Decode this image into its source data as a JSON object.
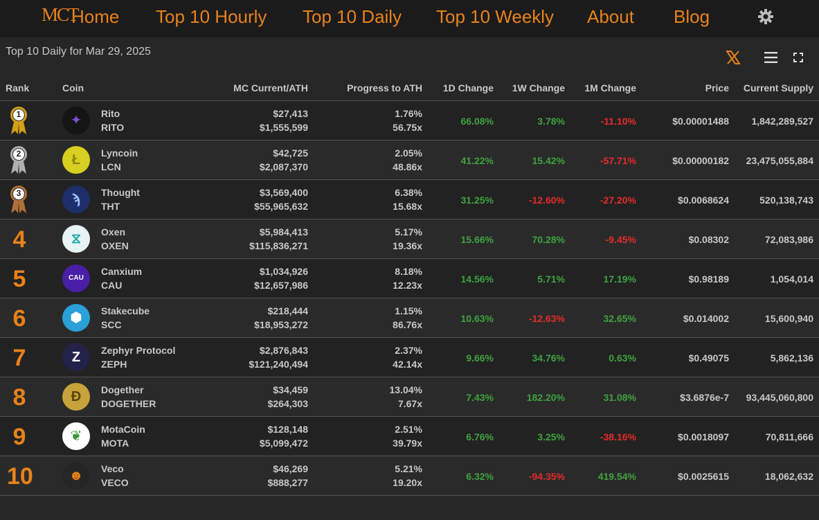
{
  "nav": {
    "logo": "MCT",
    "items": [
      "Home",
      "Top 10 Hourly",
      "Top 10 Daily",
      "Top 10 Weekly",
      "About",
      "Blog"
    ],
    "settings_icon": "gear-icon"
  },
  "subtitle": "Top 10 Daily for Mar 29, 2025",
  "toolbar": {
    "x_icon": "x-logo-icon",
    "menu_icon": "hamburger-menu-icon",
    "fullscreen_icon": "fullscreen-icon"
  },
  "colors": {
    "accent": "#e8821a",
    "positive": "#3fa33f",
    "negative": "#e52b2b",
    "gold": "#d4a017",
    "silver": "#b0b0b0",
    "bronze": "#b0703a"
  },
  "table": {
    "headers": [
      "Rank",
      "Coin",
      "MC Current/ATH",
      "Progress to ATH",
      "1D Change",
      "1W Change",
      "1M Change",
      "Price",
      "Current Supply"
    ],
    "rows": [
      {
        "rank": "1",
        "medal": "gold",
        "name": "Rito",
        "symbol": "RITO",
        "mc": "$27,413",
        "ath": "$1,555,599",
        "progress": "1.76%",
        "mult": "56.75x",
        "d1": "66.08%",
        "w1": "3.78%",
        "m1": "-11.10%",
        "price": "$0.00001488",
        "supply": "1,842,289,527"
      },
      {
        "rank": "2",
        "medal": "silver",
        "name": "Lyncoin",
        "symbol": "LCN",
        "mc": "$42,725",
        "ath": "$2,087,370",
        "progress": "2.05%",
        "mult": "48.86x",
        "d1": "41.22%",
        "w1": "15.42%",
        "m1": "-57.71%",
        "price": "$0.00000182",
        "supply": "23,475,055,884"
      },
      {
        "rank": "3",
        "medal": "bronze",
        "name": "Thought",
        "symbol": "THT",
        "mc": "$3,569,400",
        "ath": "$55,965,632",
        "progress": "6.38%",
        "mult": "15.68x",
        "d1": "31.25%",
        "w1": "-12.60%",
        "m1": "-27.20%",
        "price": "$0.0068624",
        "supply": "520,138,743"
      },
      {
        "rank": "4",
        "medal": "",
        "name": "Oxen",
        "symbol": "OXEN",
        "mc": "$5,984,413",
        "ath": "$115,836,271",
        "progress": "5.17%",
        "mult": "19.36x",
        "d1": "15.66%",
        "w1": "70.28%",
        "m1": "-9.45%",
        "price": "$0.08302",
        "supply": "72,083,986"
      },
      {
        "rank": "5",
        "medal": "",
        "name": "Canxium",
        "symbol": "CAU",
        "mc": "$1,034,926",
        "ath": "$12,657,986",
        "progress": "8.18%",
        "mult": "12.23x",
        "d1": "14.56%",
        "w1": "5.71%",
        "m1": "17.19%",
        "price": "$0.98189",
        "supply": "1,054,014"
      },
      {
        "rank": "6",
        "medal": "",
        "name": "Stakecube",
        "symbol": "SCC",
        "mc": "$218,444",
        "ath": "$18,953,272",
        "progress": "1.15%",
        "mult": "86.76x",
        "d1": "10.63%",
        "w1": "-12.63%",
        "m1": "32.65%",
        "price": "$0.014002",
        "supply": "15,600,940"
      },
      {
        "rank": "7",
        "medal": "",
        "name": "Zephyr Protocol",
        "symbol": "ZEPH",
        "mc": "$2,876,843",
        "ath": "$121,240,494",
        "progress": "2.37%",
        "mult": "42.14x",
        "d1": "9.66%",
        "w1": "34.76%",
        "m1": "0.63%",
        "price": "$0.49075",
        "supply": "5,862,136"
      },
      {
        "rank": "8",
        "medal": "",
        "name": "Dogether",
        "symbol": "DOGETHER",
        "mc": "$34,459",
        "ath": "$264,303",
        "progress": "13.04%",
        "mult": "7.67x",
        "d1": "7.43%",
        "w1": "182.20%",
        "m1": "31.08%",
        "price": "$3.6876e-7",
        "supply": "93,445,060,800"
      },
      {
        "rank": "9",
        "medal": "",
        "name": "MotaCoin",
        "symbol": "MOTA",
        "mc": "$128,148",
        "ath": "$5,099,472",
        "progress": "2.51%",
        "mult": "39.79x",
        "d1": "6.76%",
        "w1": "3.25%",
        "m1": "-38.16%",
        "price": "$0.0018097",
        "supply": "70,811,666"
      },
      {
        "rank": "10",
        "medal": "",
        "name": "Veco",
        "symbol": "VECO",
        "mc": "$46,269",
        "ath": "$888,277",
        "progress": "5.21%",
        "mult": "19.20x",
        "d1": "6.32%",
        "w1": "-94.35%",
        "m1": "419.54%",
        "price": "$0.0025615",
        "supply": "18,062,632"
      }
    ]
  }
}
